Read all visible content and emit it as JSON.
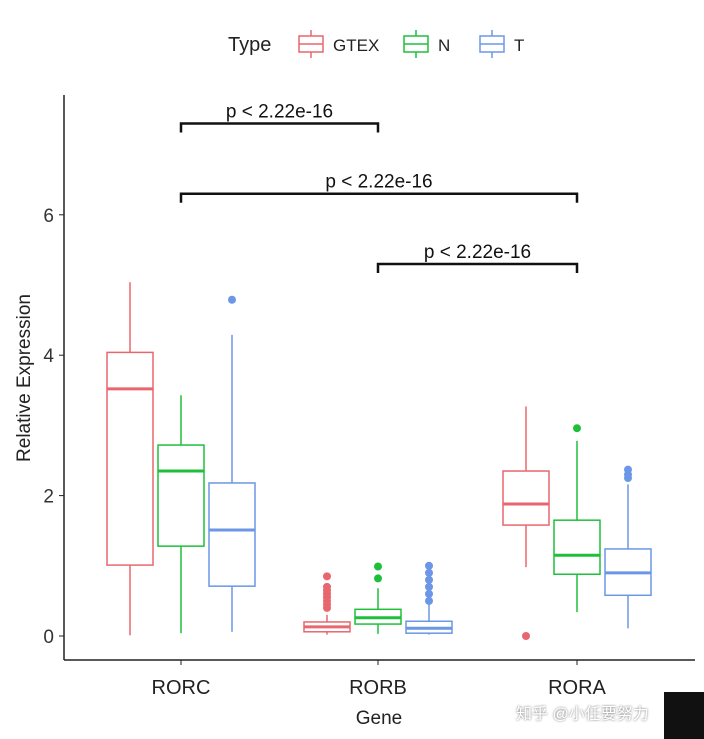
{
  "chart_data": {
    "type": "boxplot",
    "xlabel": "Gene",
    "ylabel": "Relative Expression",
    "ylim": [
      -0.35,
      8.1
    ],
    "yticks": [
      0,
      2,
      4,
      6
    ],
    "categories": [
      "RORC",
      "RORB",
      "RORA"
    ],
    "legend": {
      "title": "Type",
      "position": "top",
      "entries": [
        "GTEX",
        "N",
        "T"
      ]
    },
    "colors": {
      "GTEX": "#e8676e",
      "N": "#1fbf3c",
      "T": "#6b97e6"
    },
    "series": [
      {
        "name": "GTEX",
        "boxes": [
          {
            "min": 0.01,
            "q1": 1.01,
            "median": 3.52,
            "q3": 4.04,
            "max": 5.04,
            "outliers": []
          },
          {
            "min": 0.02,
            "q1": 0.06,
            "median": 0.13,
            "q3": 0.2,
            "max": 0.3,
            "outliers": [
              0.4,
              0.45,
              0.5,
              0.55,
              0.6,
              0.65,
              0.7,
              0.85
            ]
          },
          {
            "min": 0.98,
            "q1": 1.58,
            "median": 1.88,
            "q3": 2.35,
            "max": 3.27,
            "outliers": [
              0.0
            ]
          }
        ]
      },
      {
        "name": "N",
        "boxes": [
          {
            "min": 0.04,
            "q1": 1.28,
            "median": 2.35,
            "q3": 2.72,
            "max": 3.43,
            "outliers": []
          },
          {
            "min": 0.03,
            "q1": 0.17,
            "median": 0.26,
            "q3": 0.38,
            "max": 0.68,
            "outliers": [
              0.82,
              0.99
            ]
          },
          {
            "min": 0.34,
            "q1": 0.88,
            "median": 1.15,
            "q3": 1.65,
            "max": 2.78,
            "outliers": [
              2.96
            ]
          }
        ]
      },
      {
        "name": "T",
        "boxes": [
          {
            "min": 0.06,
            "q1": 0.71,
            "median": 1.51,
            "q3": 2.18,
            "max": 4.29,
            "outliers": [
              4.79
            ]
          },
          {
            "min": 0.02,
            "q1": 0.04,
            "median": 0.11,
            "q3": 0.21,
            "max": 0.47,
            "outliers": [
              0.5,
              0.6,
              0.7,
              0.8,
              0.9,
              1.0
            ]
          },
          {
            "min": 0.11,
            "q1": 0.58,
            "median": 0.9,
            "q3": 1.24,
            "max": 2.16,
            "outliers": [
              2.25,
              2.3,
              2.37
            ]
          }
        ]
      }
    ],
    "annotations": [
      {
        "from": "RORC",
        "to": "RORB",
        "y": 7.3,
        "label": "p < 2.22e-16"
      },
      {
        "from": "RORC",
        "to": "RORA",
        "y": 6.3,
        "label": "p < 2.22e-16"
      },
      {
        "from": "RORB",
        "to": "RORA",
        "y": 5.3,
        "label": "p < 2.22e-16"
      }
    ]
  },
  "watermark": "知乎 @小任要努力"
}
